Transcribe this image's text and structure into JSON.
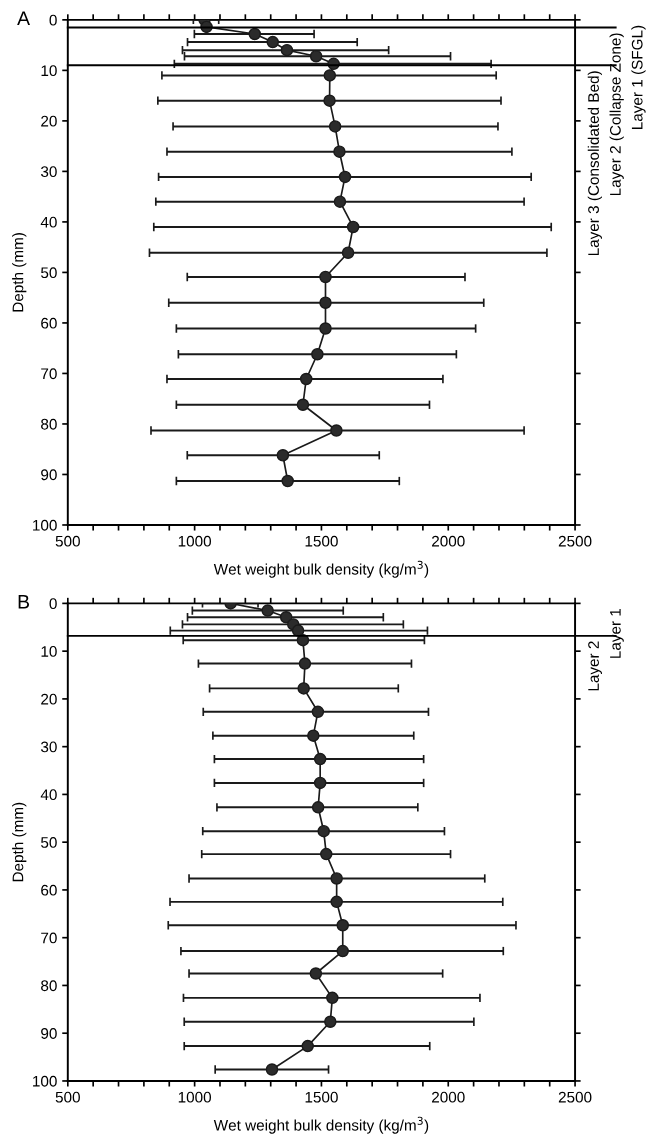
{
  "chart_data": [
    {
      "type": "line",
      "title": "A",
      "xlabel": "Wet weight bulk density (kg/m$^{3}$)",
      "ylabel": "Depth (mm)",
      "series": [
        {
          "color": "#1a1a1a",
          "marker": "circle",
          "x": [
            1039,
            1047,
            1237,
            1308,
            1364,
            1479,
            1548,
            1533,
            1532,
            1554,
            1571,
            1593,
            1573,
            1625,
            1605,
            1516,
            1516,
            1516,
            1484,
            1440,
            1427,
            1559,
            1348,
            1367
          ],
          "values": [
            0,
            1.4,
            2.8,
            4.4,
            6.0,
            7.2,
            8.7,
            11,
            16,
            21.1,
            26.1,
            31.1,
            36.0,
            41.0,
            46.1,
            50.9,
            56.0,
            61.1,
            66.2,
            71.1,
            76.2,
            81.3,
            86.2,
            91.3
          ],
          "xerrors": [
            [
              995,
              1095
            ],
            null,
            [
              999,
              1471
            ],
            [
              972,
              1641
            ],
            [
              952,
              1765
            ],
            [
              960,
              2009
            ],
            [
              920,
              2169
            ],
            [
              871,
              2189
            ],
            [
              855,
              2208
            ],
            [
              915,
              2196
            ],
            [
              891,
              2251
            ],
            [
              858,
              2327
            ],
            [
              847,
              2299
            ],
            [
              839,
              2406
            ],
            [
              822,
              2389
            ],
            [
              971,
              2066
            ],
            [
              898,
              2140
            ],
            [
              928,
              2108
            ],
            [
              936,
              2032
            ],
            [
              891,
              1979
            ],
            [
              928,
              1926
            ],
            [
              828,
              2299
            ],
            [
              971,
              1728
            ],
            [
              928,
              1807
            ]
          ]
        }
      ],
      "xlim": [
        500,
        2500
      ],
      "ylim": [
        100,
        0
      ],
      "xticks": [
        500,
        {
          "value": 600,
          "label": null
        },
        {
          "value": 700,
          "label": null
        },
        {
          "value": 800,
          "label": null
        },
        {
          "value": 900,
          "label": null
        },
        1000,
        {
          "value": 1100,
          "label": null
        },
        {
          "value": 1200,
          "label": null
        },
        {
          "value": 1300,
          "label": null
        },
        {
          "value": 1400,
          "label": null
        },
        1500,
        {
          "value": 1600,
          "label": null
        },
        {
          "value": 1700,
          "label": null
        },
        {
          "value": 1800,
          "label": null
        },
        {
          "value": 1900,
          "label": null
        },
        2000,
        {
          "value": 2100,
          "label": null
        },
        {
          "value": 2200,
          "label": null
        },
        {
          "value": 2300,
          "label": null
        },
        {
          "value": 2400,
          "label": null
        },
        2500
      ],
      "yticks": [
        0,
        10,
        20,
        30,
        40,
        50,
        60,
        70,
        80,
        90,
        100
      ],
      "ref_lines": [
        {
          "axis": "y",
          "value": 1.5,
          "color": "#000000"
        },
        {
          "axis": "y",
          "value": 9,
          "color": "#000000"
        }
      ],
      "annotations": [
        "Layer 1 (SFGL)",
        "Layer 2 (Collapse Zone)",
        "Layer 3 (Consolidated Bed)"
      ],
      "grid": false,
      "legend": false
    },
    {
      "type": "line",
      "title": "B",
      "xlabel": "Wet weight bulk density (kg/m$^{3}$)",
      "ylabel": "Depth (mm)",
      "series": [
        {
          "color": "#1a1a1a",
          "marker": "circle",
          "x": [
            1142,
            1288,
            1361,
            1389,
            1408,
            1427,
            1435,
            1430,
            1486,
            1468,
            1495,
            1495,
            1487,
            1509,
            1519,
            1560,
            1560,
            1584,
            1584,
            1478,
            1543,
            1535,
            1446,
            1305
          ],
          "values": [
            0,
            1.5,
            2.9,
            4.4,
            5.7,
            7.7,
            12.6,
            17.8,
            22.7,
            27.7,
            32.6,
            37.6,
            42.7,
            47.7,
            52.5,
            57.6,
            62.5,
            67.4,
            72.8,
            77.5,
            82.6,
            87.6,
            92.7,
            97.6
          ],
          "xerrors": [
            [
              1031,
              1250
            ],
            [
              991,
              1586
            ],
            [
              972,
              1744
            ],
            [
              952,
              1823
            ],
            [
              904,
              1918
            ],
            [
              955,
              1906
            ],
            [
              1015,
              1855
            ],
            [
              1059,
              1803
            ],
            [
              1034,
              1922
            ],
            [
              1072,
              1864
            ],
            [
              1078,
              1903
            ],
            [
              1078,
              1903
            ],
            [
              1088,
              1880
            ],
            [
              1032,
              1985
            ],
            [
              1028,
              2009
            ],
            [
              978,
              2144
            ],
            [
              903,
              2215
            ],
            [
              896,
              2267
            ],
            [
              946,
              2217
            ],
            [
              978,
              1978
            ],
            [
              956,
              2125
            ],
            [
              959,
              2101
            ],
            [
              959,
              1927
            ],
            [
              1081,
              1528
            ]
          ]
        }
      ],
      "xlim": [
        500,
        2500
      ],
      "ylim": [
        100,
        0
      ],
      "xticks": [
        500,
        {
          "value": 600,
          "label": null
        },
        {
          "value": 700,
          "label": null
        },
        {
          "value": 800,
          "label": null
        },
        {
          "value": 900,
          "label": null
        },
        1000,
        {
          "value": 1100,
          "label": null
        },
        {
          "value": 1200,
          "label": null
        },
        {
          "value": 1300,
          "label": null
        },
        {
          "value": 1400,
          "label": null
        },
        1500,
        {
          "value": 1600,
          "label": null
        },
        {
          "value": 1700,
          "label": null
        },
        {
          "value": 1800,
          "label": null
        },
        {
          "value": 1900,
          "label": null
        },
        2000,
        {
          "value": 2100,
          "label": null
        },
        {
          "value": 2200,
          "label": null
        },
        {
          "value": 2300,
          "label": null
        },
        {
          "value": 2400,
          "label": null
        },
        2500
      ],
      "yticks": [
        0,
        10,
        20,
        30,
        40,
        50,
        60,
        70,
        80,
        90,
        100
      ],
      "ref_lines": [
        {
          "axis": "y",
          "value": 6.8,
          "color": "#000000"
        }
      ],
      "annotations": [
        "Layer 1",
        "Layer 2"
      ],
      "grid": false,
      "legend": false
    }
  ]
}
